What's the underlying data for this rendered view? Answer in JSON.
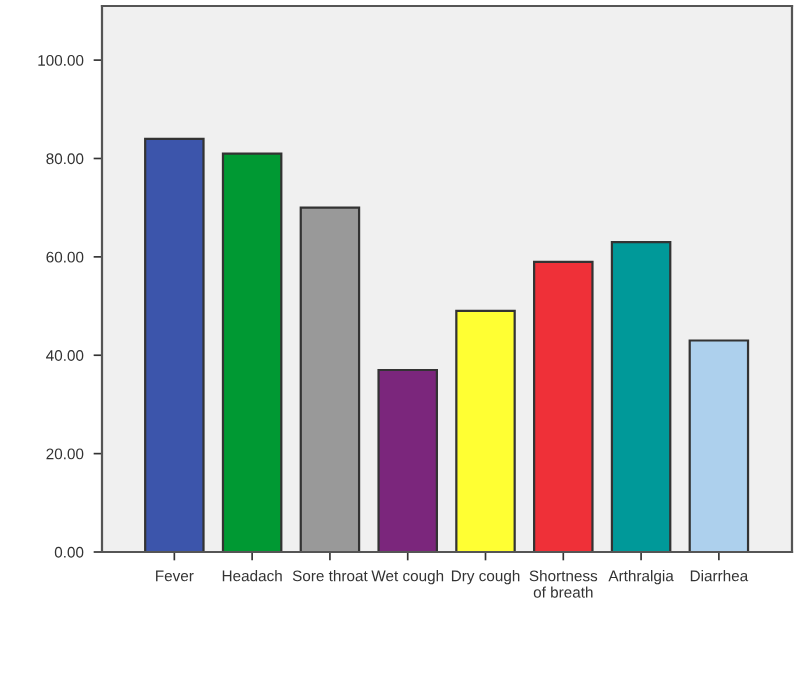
{
  "chart_data": {
    "type": "bar",
    "categories": [
      "Fever",
      "Headach",
      "Sore throat",
      "Wet cough",
      "Dry cough",
      "Shortness\nof breath",
      "Arthralgia",
      "Diarrhea"
    ],
    "values": [
      84,
      81,
      70,
      37,
      49,
      59,
      63,
      43
    ],
    "colors": [
      "#3c55ab",
      "#009933",
      "#999999",
      "#7b267c",
      "#ffff33",
      "#ef3038",
      "#009999",
      "#add0ed"
    ],
    "ylim": [
      0,
      111
    ],
    "yticks": [
      {
        "value": 0,
        "label": "0.00"
      },
      {
        "value": 20,
        "label": "20.00"
      },
      {
        "value": 40,
        "label": "40.00"
      },
      {
        "value": 60,
        "label": "60.00"
      },
      {
        "value": 80,
        "label": "80.00"
      },
      {
        "value": 100,
        "label": "100.00"
      }
    ],
    "grid": false,
    "legend": false
  }
}
